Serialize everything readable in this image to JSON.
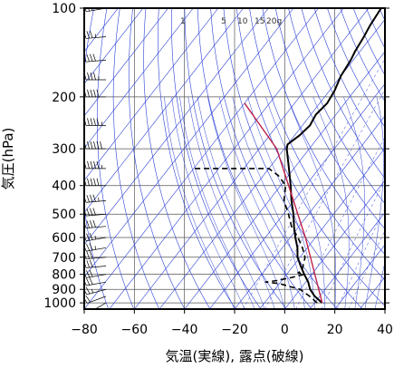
{
  "chart_data": {
    "type": "line",
    "title": "",
    "xlabel": "気温(実線), 露点(破線)",
    "ylabel": "気圧(hPa)",
    "xlim": [
      -80,
      40
    ],
    "ylim": [
      1050,
      100
    ],
    "y_scale": "log",
    "grid": true,
    "x_ticks": [
      -80,
      -60,
      -40,
      -20,
      0,
      20,
      40
    ],
    "x_tick_labels": [
      "−80",
      "−60",
      "−40",
      "−20",
      "0",
      "20",
      "40"
    ],
    "y_ticks": [
      100,
      200,
      300,
      400,
      500,
      600,
      700,
      800,
      900,
      1000
    ],
    "y_tick_labels": [
      "100",
      "200",
      "300",
      "400",
      "500",
      "600",
      "700",
      "800",
      "900",
      "1000"
    ],
    "mixing_ratio_labels": [
      "1",
      "5",
      "10",
      "15",
      "20g"
    ],
    "series": [
      {
        "style": "solid",
        "color": "#000000",
        "points": [
          {
            "t": 13,
            "p": 1000
          },
          {
            "t": 8,
            "p": 950
          },
          {
            "t": 4,
            "p": 900
          },
          {
            "t": 1,
            "p": 850
          },
          {
            "t": -3,
            "p": 800
          },
          {
            "t": -7,
            "p": 750
          },
          {
            "t": -11,
            "p": 700
          },
          {
            "t": -14,
            "p": 650
          },
          {
            "t": -18,
            "p": 600
          },
          {
            "t": -22,
            "p": 550
          },
          {
            "t": -26,
            "p": 500
          },
          {
            "t": -31,
            "p": 450
          },
          {
            "t": -36,
            "p": 400
          },
          {
            "t": -42,
            "p": 350
          },
          {
            "t": -49,
            "p": 300
          },
          {
            "t": -50,
            "p": 290
          },
          {
            "t": -48,
            "p": 270
          },
          {
            "t": -47,
            "p": 250
          },
          {
            "t": -48,
            "p": 230
          },
          {
            "t": -47,
            "p": 210
          },
          {
            "t": -48,
            "p": 190
          },
          {
            "t": -50,
            "p": 170
          },
          {
            "t": -51,
            "p": 150
          },
          {
            "t": -52,
            "p": 140
          },
          {
            "t": -53,
            "p": 125
          },
          {
            "t": -54,
            "p": 115
          },
          {
            "t": -55,
            "p": 100
          }
        ]
      },
      {
        "style": "dashed",
        "color": "#000000",
        "points": [
          {
            "t": 11,
            "p": 1000
          },
          {
            "t": 6,
            "p": 950
          },
          {
            "t": 0,
            "p": 900
          },
          {
            "t": -5,
            "p": 880
          },
          {
            "t": -10,
            "p": 860
          },
          {
            "t": -16,
            "p": 850
          },
          {
            "t": -12,
            "p": 840
          },
          {
            "t": -7,
            "p": 820
          },
          {
            "t": -3,
            "p": 800
          },
          {
            "t": -6,
            "p": 790
          },
          {
            "t": -5,
            "p": 780
          },
          {
            "t": -8,
            "p": 700
          },
          {
            "t": -12,
            "p": 650
          },
          {
            "t": -17,
            "p": 600
          },
          {
            "t": -23,
            "p": 550
          },
          {
            "t": -28,
            "p": 500
          },
          {
            "t": -34,
            "p": 450
          },
          {
            "t": -38,
            "p": 400
          },
          {
            "t": -44,
            "p": 370
          },
          {
            "t": -50,
            "p": 350
          },
          {
            "t": -64,
            "p": 350
          },
          {
            "t": -80,
            "p": 350
          }
        ]
      },
      {
        "style": "solid",
        "color": "#c0204a",
        "points": [
          {
            "t": 13,
            "p": 1000
          },
          {
            "t": -14,
            "p": 600
          },
          {
            "t": -53,
            "p": 300
          },
          {
            "t": -80,
            "p": 210
          }
        ]
      }
    ],
    "wind_barbs": [
      {
        "p": 1000,
        "dir": 240,
        "spd": 15
      },
      {
        "p": 950,
        "dir": 250,
        "spd": 20
      },
      {
        "p": 900,
        "dir": 255,
        "spd": 25
      },
      {
        "p": 850,
        "dir": 260,
        "spd": 30
      },
      {
        "p": 800,
        "dir": 260,
        "spd": 30
      },
      {
        "p": 750,
        "dir": 265,
        "spd": 30
      },
      {
        "p": 700,
        "dir": 265,
        "spd": 30
      },
      {
        "p": 650,
        "dir": 260,
        "spd": 35
      },
      {
        "p": 600,
        "dir": 260,
        "spd": 35
      },
      {
        "p": 550,
        "dir": 265,
        "spd": 40
      },
      {
        "p": 500,
        "dir": 265,
        "spd": 40
      },
      {
        "p": 450,
        "dir": 265,
        "spd": 45
      },
      {
        "p": 400,
        "dir": 270,
        "spd": 50
      },
      {
        "p": 350,
        "dir": 270,
        "spd": 55
      },
      {
        "p": 300,
        "dir": 270,
        "spd": 60
      },
      {
        "p": 250,
        "dir": 270,
        "spd": 55
      },
      {
        "p": 200,
        "dir": 270,
        "spd": 50
      },
      {
        "p": 175,
        "dir": 270,
        "spd": 45
      },
      {
        "p": 150,
        "dir": 265,
        "spd": 40
      },
      {
        "p": 125,
        "dir": 265,
        "spd": 35
      },
      {
        "p": 100,
        "dir": 260,
        "spd": 30
      }
    ],
    "colors": {
      "background": "#ffffff",
      "frame": "#000000",
      "isotherm": "#2a3fd6",
      "dry_adiabat": "#2a3fd6",
      "moist_adiabat": "#2a3fd6",
      "mixing_ratio": "#2a3fd6",
      "parcel": "#c0204a"
    }
  }
}
